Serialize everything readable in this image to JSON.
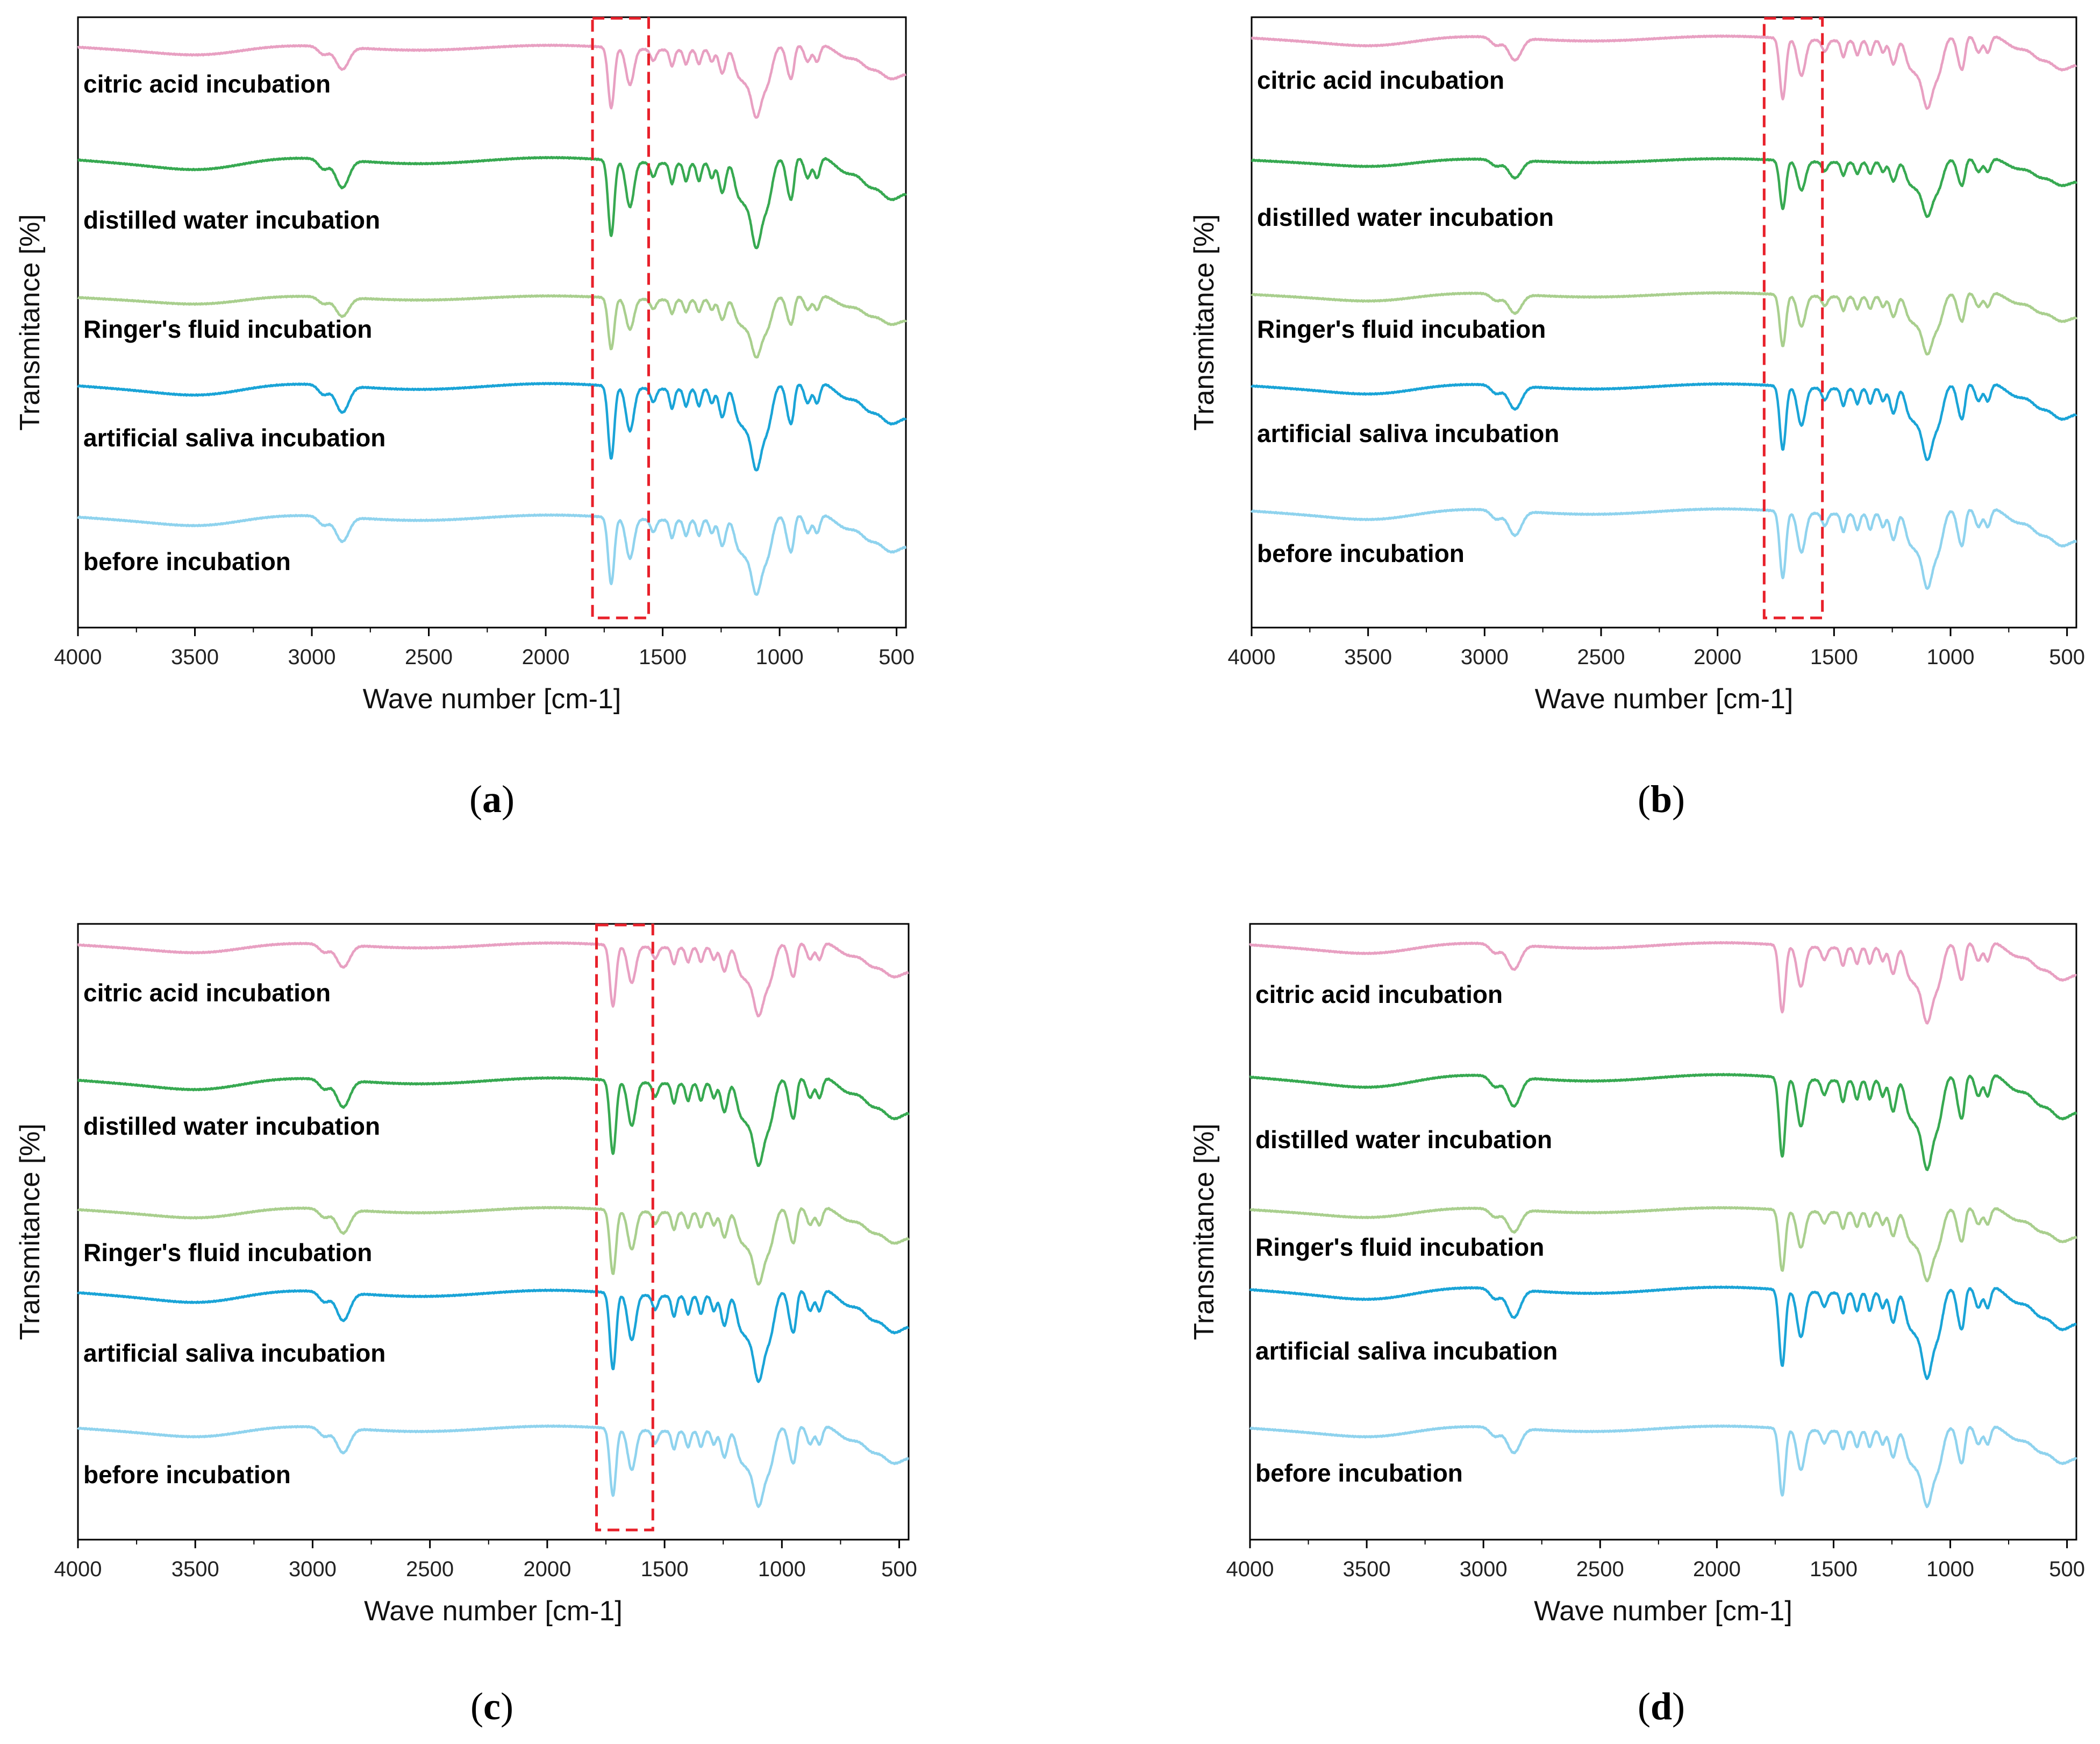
{
  "chart_data": [
    {
      "panel": "a",
      "caption": "a",
      "type": "line",
      "xlabel": "Wave number [cm-1]",
      "ylabel": "Transmitance [%]",
      "xlim": [
        4000,
        460
      ],
      "xticks": [
        4000,
        3500,
        3000,
        2500,
        2000,
        1500,
        1000,
        500
      ],
      "grid": false,
      "highlight_region": {
        "x_from": 1800,
        "x_to": 1560,
        "style": "red-dashed-box"
      },
      "series": [
        {
          "name": "citric acid incubation",
          "color": "#e8a0c2",
          "baseline": 0.05,
          "strength": 1.0
        },
        {
          "name": "distilled water incubation",
          "color": "#37a951",
          "baseline": 0.235,
          "strength": 1.25
        },
        {
          "name": "Ringer's fluid incubation",
          "color": "#a9cf8e",
          "baseline": 0.46,
          "strength": 0.85
        },
        {
          "name": "artificial saliva incubation",
          "color": "#1aa4d7",
          "baseline": 0.605,
          "strength": 1.2
        },
        {
          "name": "before incubation",
          "color": "#8fd3ee",
          "baseline": 0.82,
          "strength": 1.1
        }
      ]
    },
    {
      "panel": "b",
      "caption": "b",
      "type": "line",
      "xlabel": "Wave number [cm-1]",
      "ylabel": "Transmitance [%]",
      "xlim": [
        4000,
        460
      ],
      "xticks": [
        4000,
        3500,
        3000,
        2500,
        2000,
        1500,
        1000,
        500
      ],
      "grid": false,
      "highlight_region": {
        "x_from": 1800,
        "x_to": 1550,
        "style": "red-dashed-box"
      },
      "series": [
        {
          "name": "citric acid incubation",
          "color": "#e8a0c2",
          "baseline": 0.035,
          "strength": 1.0
        },
        {
          "name": "distilled water incubation",
          "color": "#37a951",
          "baseline": 0.235,
          "strength": 0.8
        },
        {
          "name": "Ringer's fluid incubation",
          "color": "#a9cf8e",
          "baseline": 0.455,
          "strength": 0.85
        },
        {
          "name": "artificial saliva incubation",
          "color": "#1aa4d7",
          "baseline": 0.605,
          "strength": 1.05
        },
        {
          "name": "before incubation",
          "color": "#8fd3ee",
          "baseline": 0.81,
          "strength": 1.1
        }
      ]
    },
    {
      "panel": "c",
      "caption": "c",
      "type": "line",
      "xlabel": "Wave number [cm-1]",
      "ylabel": "Transmitance [%]",
      "xlim": [
        4000,
        460
      ],
      "xticks": [
        4000,
        3500,
        3000,
        2500,
        2000,
        1500,
        1000,
        500
      ],
      "grid": false,
      "highlight_region": {
        "x_from": 1790,
        "x_to": 1550,
        "style": "red-dashed-box"
      },
      "series": [
        {
          "name": "citric acid incubation",
          "color": "#e8a0c2",
          "baseline": 0.035,
          "strength": 1.0
        },
        {
          "name": "distilled water incubation",
          "color": "#37a951",
          "baseline": 0.255,
          "strength": 1.2
        },
        {
          "name": "Ringer's fluid incubation",
          "color": "#a9cf8e",
          "baseline": 0.465,
          "strength": 1.05
        },
        {
          "name": "artificial saliva incubation",
          "color": "#1aa4d7",
          "baseline": 0.6,
          "strength": 1.25
        },
        {
          "name": "before incubation",
          "color": "#8fd3ee",
          "baseline": 0.82,
          "strength": 1.1
        }
      ]
    },
    {
      "panel": "d",
      "caption": "d",
      "type": "line",
      "xlabel": "Wave number [cm-1]",
      "ylabel": "Transmitance [%]",
      "xlim": [
        4000,
        460
      ],
      "xticks": [
        4000,
        3500,
        3000,
        2500,
        2000,
        1500,
        1000,
        500
      ],
      "grid": false,
      "highlight_region": null,
      "series": [
        {
          "name": "citric acid incubation",
          "color": "#e8a0c2",
          "baseline": 0.035,
          "strength": 1.1
        },
        {
          "name": "distilled water incubation",
          "color": "#37a951",
          "baseline": 0.25,
          "strength": 1.3
        },
        {
          "name": "Ringer's fluid incubation",
          "color": "#a9cf8e",
          "baseline": 0.465,
          "strength": 1.0
        },
        {
          "name": "artificial saliva incubation",
          "color": "#1aa4d7",
          "baseline": 0.595,
          "strength": 1.25
        },
        {
          "name": "before incubation",
          "color": "#8fd3ee",
          "baseline": 0.82,
          "strength": 1.1
        }
      ]
    }
  ]
}
